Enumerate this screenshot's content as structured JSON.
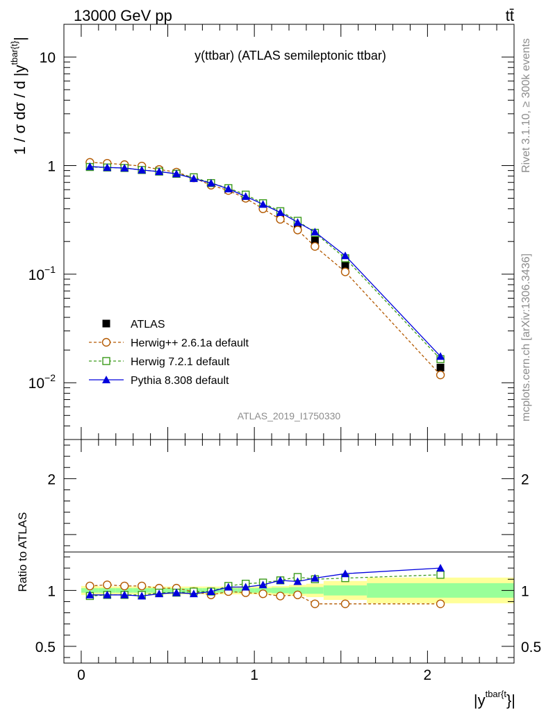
{
  "header": {
    "left": "13000 GeV pp",
    "right": "tt̄"
  },
  "side_texts": {
    "rivet": "Rivet 3.1.10, ≥ 300k events",
    "mcplots": "mcplots.cern.ch [arXiv:1306.3436]"
  },
  "chart_data": [
    {
      "type": "scatter",
      "title": "y(ttbar) (ATLAS semileptonic ttbar)",
      "analysis_label": "ATLAS_2019_I1750330",
      "ylabel": "1 / σ dσ / d |y^{tbar{t}}|",
      "xlabel": "|y^{tbar{t}}|",
      "yscale": "log",
      "xlim": [
        -0.1,
        2.5
      ],
      "ylim": [
        0.003,
        20
      ],
      "y_ticks": [
        {
          "value": 10,
          "mantissa": "10",
          "exp": ""
        },
        {
          "value": 1,
          "mantissa": "1",
          "exp": ""
        },
        {
          "value": 0.1,
          "mantissa": "10",
          "exp": "−1"
        },
        {
          "value": 0.01,
          "mantissa": "10",
          "exp": "−2"
        }
      ],
      "x": [
        0.05,
        0.15,
        0.25,
        0.35,
        0.45,
        0.55,
        0.65,
        0.75,
        0.85,
        0.95,
        1.05,
        1.15,
        1.25,
        1.35,
        1.525,
        2.075
      ],
      "series": [
        {
          "name": "ATLAS",
          "style": "data",
          "color": "#000000",
          "values": [
            1.02,
            1.0,
            0.98,
            0.95,
            0.9,
            0.85,
            0.78,
            0.69,
            0.6,
            0.51,
            0.42,
            0.34,
            0.27,
            0.205,
            0.12,
            0.0138
          ]
        },
        {
          "name": "Herwig++ 2.6.1a default",
          "style": "open-circle-dashed",
          "color": "#b35900",
          "values": [
            1.07,
            1.05,
            1.02,
            0.99,
            0.92,
            0.87,
            0.77,
            0.66,
            0.59,
            0.5,
            0.4,
            0.32,
            0.255,
            0.18,
            0.105,
            0.0118
          ]
        },
        {
          "name": "Herwig 7.2.1 default",
          "style": "open-square-dashed",
          "color": "#3a9a1a",
          "values": [
            0.97,
            0.96,
            0.95,
            0.91,
            0.88,
            0.84,
            0.78,
            0.69,
            0.62,
            0.54,
            0.45,
            0.38,
            0.31,
            0.24,
            0.14,
            0.0165
          ]
        },
        {
          "name": "Pythia 8.308 default",
          "style": "filled-triangle-solid",
          "color": "#0000dd",
          "values": [
            0.98,
            0.96,
            0.95,
            0.91,
            0.88,
            0.84,
            0.76,
            0.69,
            0.61,
            0.52,
            0.44,
            0.37,
            0.3,
            0.245,
            0.148,
            0.0175
          ]
        }
      ]
    },
    {
      "type": "scatter",
      "ylabel": "Ratio to ATLAS",
      "xlabel": "|y^{tbar{t}}|",
      "xlim": [
        -0.1,
        2.5
      ],
      "ylim": [
        0.35,
        2.35
      ],
      "y_ticks": [
        0.5,
        1,
        2
      ],
      "x_ticks": [
        0,
        1,
        2
      ],
      "x": [
        0.05,
        0.15,
        0.25,
        0.35,
        0.45,
        0.55,
        0.65,
        0.75,
        0.85,
        0.95,
        1.05,
        1.15,
        1.25,
        1.35,
        1.525,
        2.075
      ],
      "band_bins": [
        {
          "lo": 0.0,
          "hi": 0.1,
          "inner": 0.02,
          "outer": 0.04
        },
        {
          "lo": 0.1,
          "hi": 0.2,
          "inner": 0.02,
          "outer": 0.035
        },
        {
          "lo": 0.2,
          "hi": 0.3,
          "inner": 0.02,
          "outer": 0.035
        },
        {
          "lo": 0.3,
          "hi": 0.4,
          "inner": 0.02,
          "outer": 0.035
        },
        {
          "lo": 0.4,
          "hi": 0.5,
          "inner": 0.02,
          "outer": 0.035
        },
        {
          "lo": 0.5,
          "hi": 0.6,
          "inner": 0.02,
          "outer": 0.035
        },
        {
          "lo": 0.6,
          "hi": 0.7,
          "inner": 0.02,
          "outer": 0.035
        },
        {
          "lo": 0.7,
          "hi": 0.8,
          "inner": 0.02,
          "outer": 0.035
        },
        {
          "lo": 0.8,
          "hi": 0.9,
          "inner": 0.02,
          "outer": 0.035
        },
        {
          "lo": 0.9,
          "hi": 1.0,
          "inner": 0.02,
          "outer": 0.035
        },
        {
          "lo": 1.0,
          "hi": 1.1,
          "inner": 0.02,
          "outer": 0.035
        },
        {
          "lo": 1.1,
          "hi": 1.2,
          "inner": 0.025,
          "outer": 0.04
        },
        {
          "lo": 1.2,
          "hi": 1.3,
          "inner": 0.03,
          "outer": 0.05
        },
        {
          "lo": 1.3,
          "hi": 1.4,
          "inner": 0.03,
          "outer": 0.06
        },
        {
          "lo": 1.4,
          "hi": 1.65,
          "inner": 0.045,
          "outer": 0.085
        },
        {
          "lo": 1.65,
          "hi": 2.5,
          "inner": 0.065,
          "outer": 0.115
        }
      ],
      "series": [
        {
          "name": "Herwig++ 2.6.1a default",
          "color": "#b35900",
          "values": [
            1.04,
            1.05,
            1.04,
            1.04,
            1.02,
            1.02,
            0.99,
            0.96,
            0.99,
            0.98,
            0.97,
            0.95,
            0.96,
            0.88,
            0.88,
            0.88
          ]
        },
        {
          "name": "Herwig 7.2.1 default",
          "color": "#3a9a1a",
          "values": [
            0.95,
            0.96,
            0.96,
            0.96,
            0.98,
            0.98,
            0.99,
            0.99,
            1.04,
            1.06,
            1.07,
            1.09,
            1.12,
            1.1,
            1.11,
            1.14
          ]
        },
        {
          "name": "Pythia 8.308 default",
          "color": "#0000dd",
          "values": [
            0.96,
            0.96,
            0.96,
            0.95,
            0.97,
            0.98,
            0.97,
            0.99,
            1.03,
            1.03,
            1.05,
            1.09,
            1.08,
            1.11,
            1.15,
            1.2
          ]
        }
      ]
    }
  ],
  "legend": [
    {
      "label": "ATLAS"
    },
    {
      "label": "Herwig++ 2.6.1a default"
    },
    {
      "label": "Herwig 7.2.1 default"
    },
    {
      "label": "Pythia 8.308 default"
    }
  ]
}
